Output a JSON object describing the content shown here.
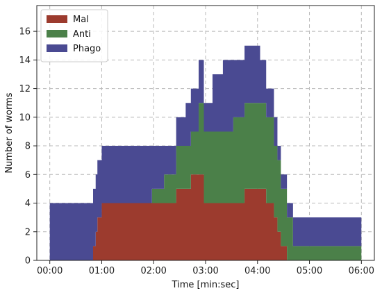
{
  "chart_data": {
    "type": "area",
    "stacked": true,
    "step": true,
    "xlabel": "Time [min:sec]",
    "ylabel": "Number of worms",
    "xlim": [
      -15,
      375
    ],
    "ylim": [
      0,
      17.8
    ],
    "xticks": [
      0,
      60,
      120,
      180,
      240,
      300,
      360
    ],
    "xtick_labels": [
      "00:00",
      "01:00",
      "02:00",
      "03:00",
      "04:00",
      "05:00",
      "06:00"
    ],
    "yticks": [
      0,
      2,
      4,
      6,
      8,
      10,
      12,
      14,
      16
    ],
    "ytick_labels": [
      "0",
      "2",
      "4",
      "6",
      "8",
      "10",
      "12",
      "14",
      "16"
    ],
    "grid": true,
    "legend_position": "top-left",
    "x": [
      0,
      50,
      53,
      55,
      60,
      104,
      118,
      132,
      146,
      157,
      163,
      172,
      178,
      188,
      200,
      212,
      225,
      237,
      243,
      250,
      259,
      263,
      267,
      274,
      281,
      360
    ],
    "series": [
      {
        "name": "Mal",
        "color": "#9c3b2e",
        "values": [
          0,
          1,
          2,
          3,
          4,
          4,
          4,
          4,
          5,
          5,
          6,
          6,
          4,
          4,
          4,
          4,
          5,
          5,
          5,
          4,
          3,
          2,
          1,
          0,
          0,
          0
        ]
      },
      {
        "name": "Anti",
        "color": "#4b8049",
        "values": [
          0,
          0,
          0,
          0,
          0,
          0,
          1,
          2,
          3,
          3,
          3,
          5,
          5,
          5,
          5,
          6,
          6,
          6,
          6,
          6,
          5,
          5,
          4,
          3,
          1,
          1
        ]
      },
      {
        "name": "Phago",
        "color": "#4a4a92",
        "values": [
          4,
          4,
          4,
          4,
          4,
          4,
          3,
          2,
          2,
          3,
          3,
          3,
          2,
          4,
          5,
          4,
          4,
          4,
          3,
          2,
          2,
          1,
          1,
          1,
          2,
          4
        ]
      }
    ]
  }
}
